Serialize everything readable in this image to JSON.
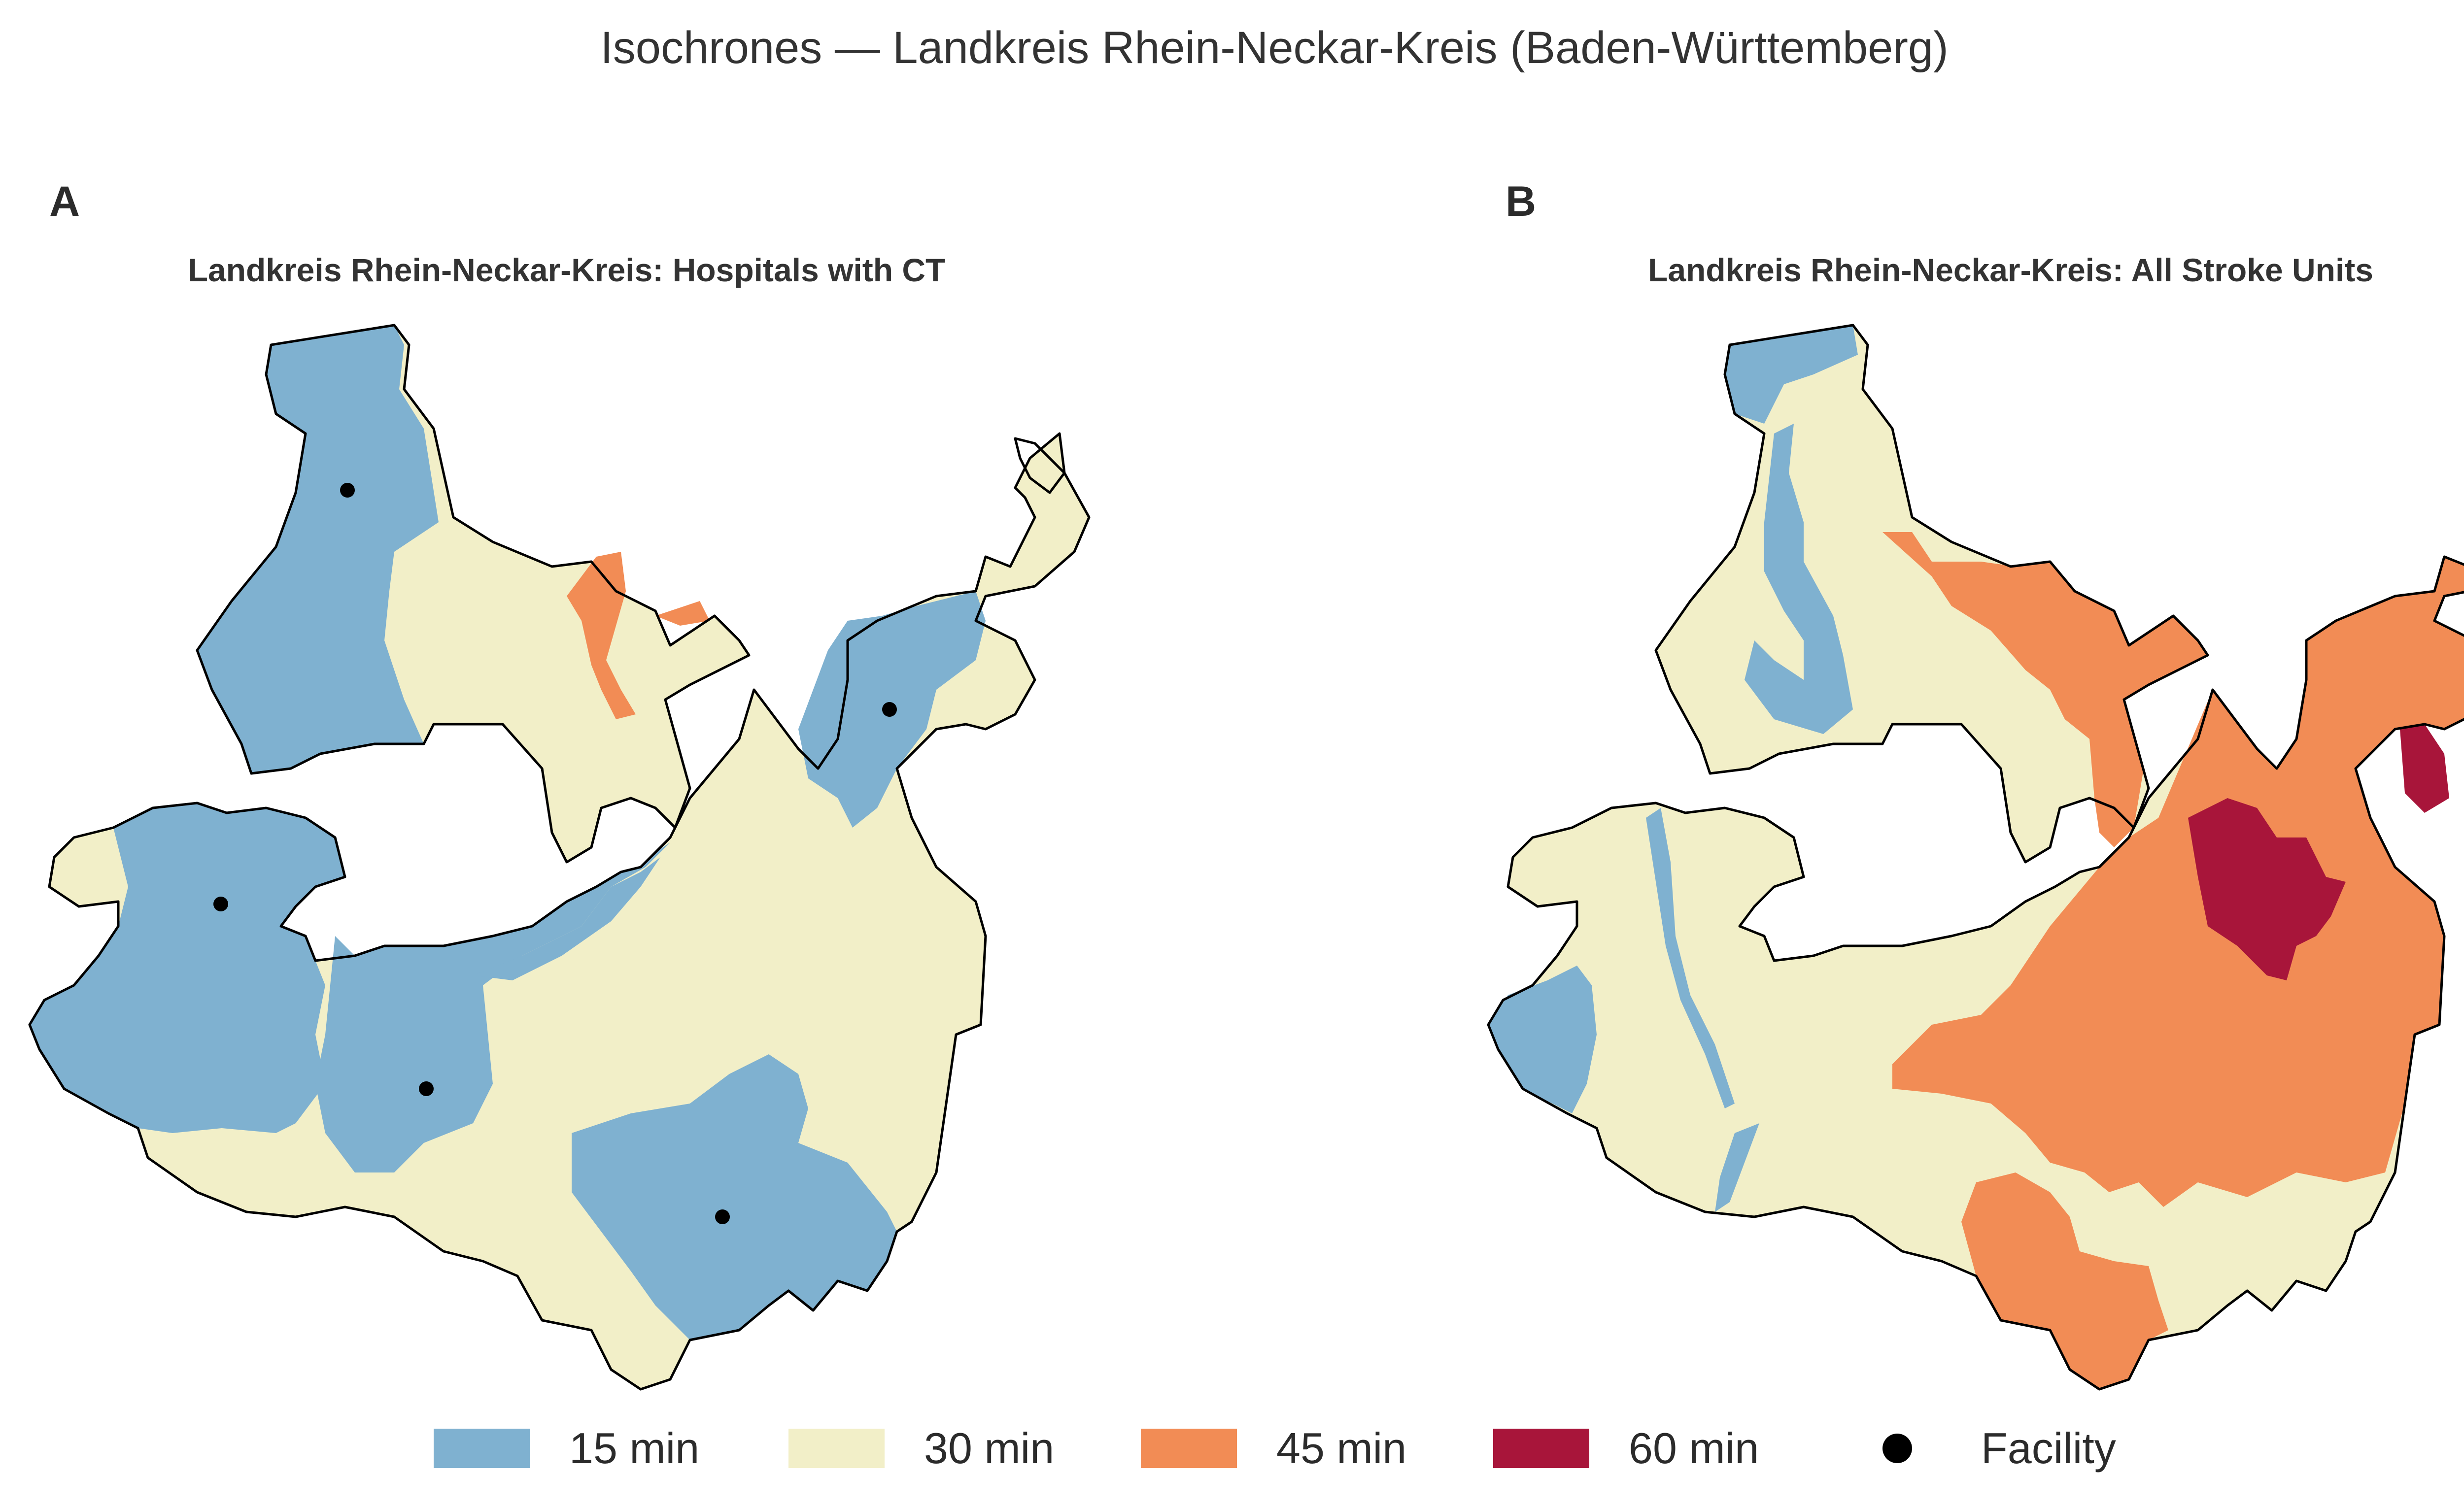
{
  "figure": {
    "title": "Isochrones — Landkreis Rhein-Neckar-Kreis (Baden-Württemberg)"
  },
  "colors": {
    "min15": "#7fb1d0",
    "min30": "#f2efc8",
    "min45": "#f28c55",
    "min60": "#a8153a",
    "outline": "#000000",
    "facility": "#000000"
  },
  "panels": [
    {
      "letter": "A",
      "title": "Landkreis Rhein-Neckar-Kreis: Hospitals with CT",
      "zones_present": [
        "15 min",
        "30 min",
        "45 min"
      ],
      "facilities_shown": 5
    },
    {
      "letter": "B",
      "title": "Landkreis Rhein-Neckar-Kreis: All Stroke Units",
      "zones_present": [
        "15 min",
        "30 min",
        "45 min",
        "60 min"
      ],
      "facilities_shown": 0
    }
  ],
  "legend": {
    "items": [
      {
        "label": "15 min",
        "color": "#7fb1d0",
        "kind": "swatch"
      },
      {
        "label": "30 min",
        "color": "#f2efc8",
        "kind": "swatch"
      },
      {
        "label": "45 min",
        "color": "#f28c55",
        "kind": "swatch"
      },
      {
        "label": "60 min",
        "color": "#a8153a",
        "kind": "swatch"
      },
      {
        "label": "Facility",
        "color": "#000000",
        "kind": "marker"
      }
    ]
  }
}
